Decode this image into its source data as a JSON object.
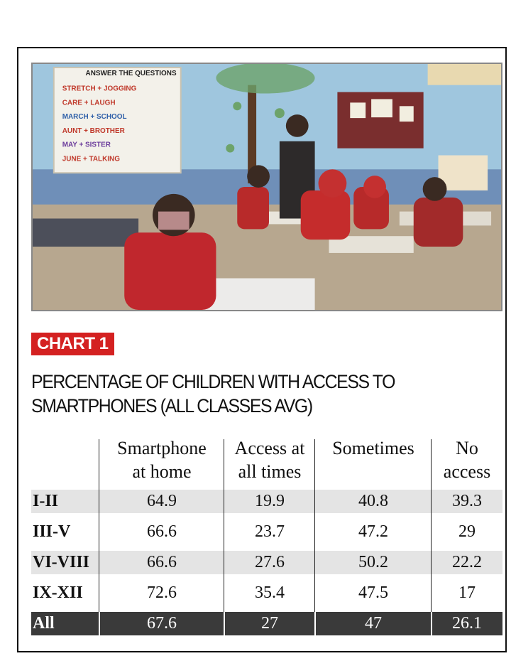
{
  "badge": "CHART 1",
  "title_lines": [
    "PERCENTAGE OF CHILDREN WITH ACCESS TO",
    "SMARTPHONES (ALL CLASSES AVG)"
  ],
  "photo_board_lines": [
    "ANSWER THE QUESTIONS",
    "STRETCH + JOGGING",
    "CARE + LAUGH",
    "MARCH + SCHOOL",
    "AUNT + BROTHER",
    "MAY + SISTER",
    "JUNE + TALKING"
  ],
  "chart_data": {
    "type": "table",
    "title": "PERCENTAGE OF CHILDREN WITH ACCESS TO SMARTPHONES (ALL CLASSES AVG)",
    "columns": [
      {
        "label_lines": [
          "Smartphone",
          "at home"
        ]
      },
      {
        "label_lines": [
          "Access at",
          "all times"
        ]
      },
      {
        "label_lines": [
          "Sometimes",
          ""
        ]
      },
      {
        "label_lines": [
          "No",
          "access"
        ]
      }
    ],
    "rows": [
      {
        "label": "I-II",
        "values": [
          "64.9",
          "19.9",
          "40.8",
          "39.3"
        ]
      },
      {
        "label": "III-V",
        "values": [
          "66.6",
          "23.7",
          "47.2",
          "29"
        ]
      },
      {
        "label": "VI-VIII",
        "values": [
          "66.6",
          "27.6",
          "50.2",
          "22.2"
        ]
      },
      {
        "label": "IX-XII",
        "values": [
          "72.6",
          "35.4",
          "47.5",
          "17"
        ]
      },
      {
        "label": "All",
        "values": [
          "67.6",
          "27",
          "47",
          "26.1"
        ]
      }
    ]
  },
  "colors": {
    "badge": "#d42121",
    "row_alt": "#e4e4e4",
    "total_row": "#3a3a3a",
    "header_text": "#111111"
  }
}
